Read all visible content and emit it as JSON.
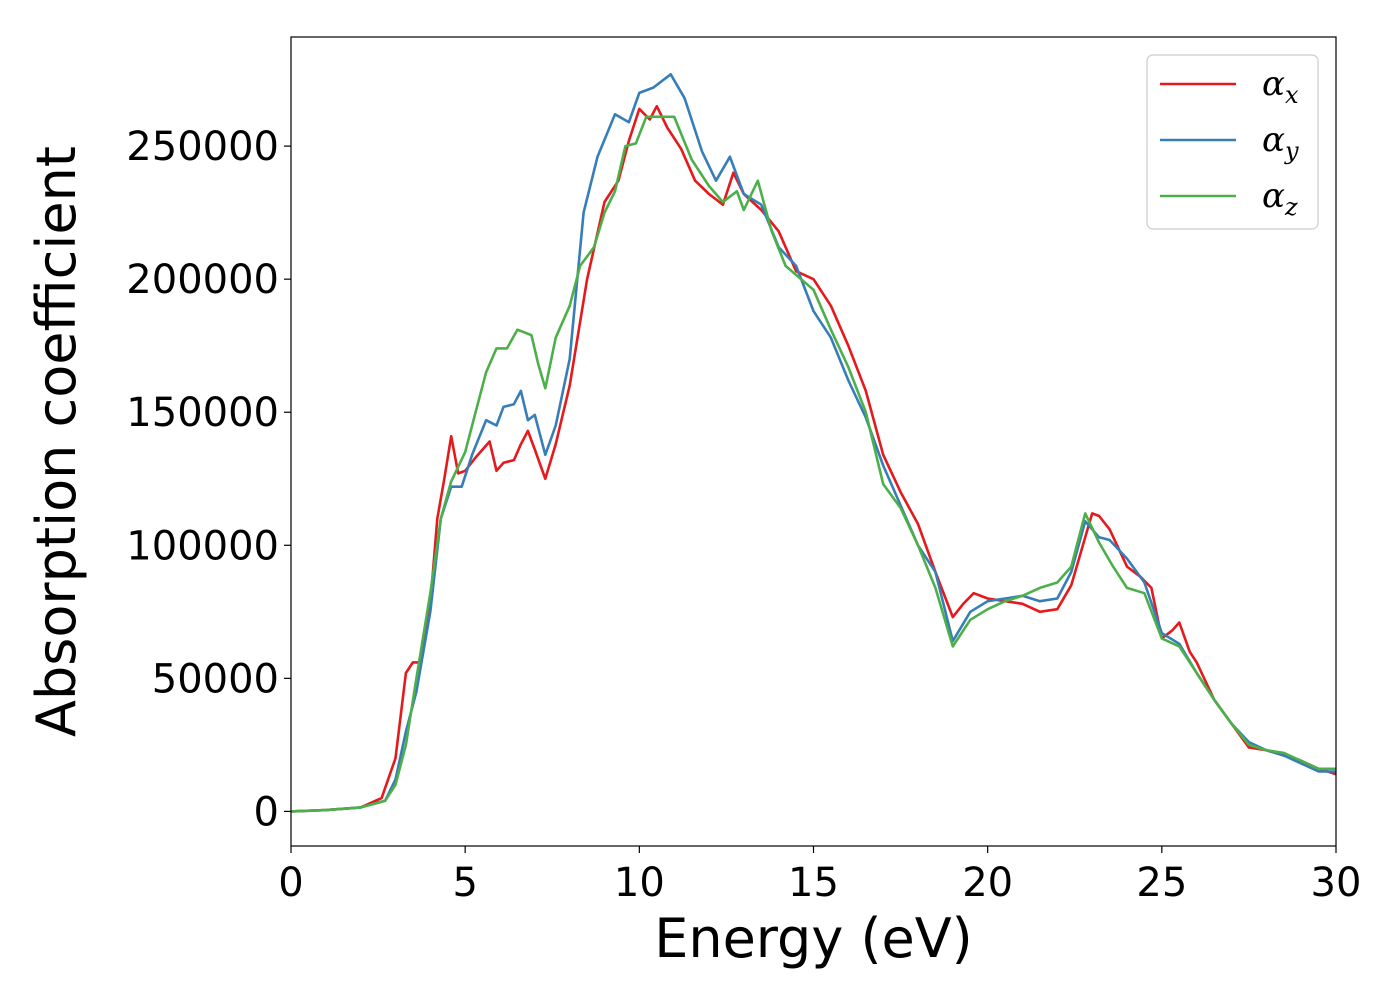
{
  "chart_data": {
    "type": "line",
    "title": "",
    "xlabel": "Energy (eV)",
    "ylabel": "Absorption coefficient",
    "xlim": [
      0,
      30
    ],
    "ylim": [
      -13000,
      291000
    ],
    "xticks": [
      0,
      5,
      10,
      15,
      20,
      25,
      30
    ],
    "xtick_labels": [
      "0",
      "5",
      "10",
      "15",
      "20",
      "25",
      "30"
    ],
    "yticks": [
      0,
      50000,
      100000,
      150000,
      200000,
      250000
    ],
    "ytick_labels": [
      "0",
      "50000",
      "100000",
      "150000",
      "200000",
      "250000"
    ],
    "grid": false,
    "legend": "top-right",
    "series": [
      {
        "name": "α_x",
        "symbol": "α",
        "subscript": "x",
        "color": "#e41a1c",
        "points": [
          [
            0,
            0
          ],
          [
            1,
            500
          ],
          [
            2,
            1500
          ],
          [
            2.6,
            5000
          ],
          [
            3,
            20000
          ],
          [
            3.3,
            52000
          ],
          [
            3.5,
            56000
          ],
          [
            3.7,
            56000
          ],
          [
            4,
            78000
          ],
          [
            4.2,
            110000
          ],
          [
            4.4,
            125000
          ],
          [
            4.6,
            141000
          ],
          [
            4.8,
            127000
          ],
          [
            5,
            128000
          ],
          [
            5.3,
            133000
          ],
          [
            5.7,
            139000
          ],
          [
            5.9,
            128000
          ],
          [
            6.1,
            131000
          ],
          [
            6.4,
            132000
          ],
          [
            6.6,
            138000
          ],
          [
            6.8,
            143000
          ],
          [
            7,
            136000
          ],
          [
            7.3,
            125000
          ],
          [
            7.6,
            138000
          ],
          [
            8,
            160000
          ],
          [
            8.5,
            200000
          ],
          [
            9,
            229000
          ],
          [
            9.4,
            237000
          ],
          [
            9.7,
            252000
          ],
          [
            10,
            264000
          ],
          [
            10.3,
            260000
          ],
          [
            10.5,
            265000
          ],
          [
            10.8,
            257000
          ],
          [
            11.2,
            249000
          ],
          [
            11.6,
            237000
          ],
          [
            12,
            232000
          ],
          [
            12.4,
            228000
          ],
          [
            12.7,
            240000
          ],
          [
            13,
            232000
          ],
          [
            13.5,
            226000
          ],
          [
            14,
            218000
          ],
          [
            14.5,
            203000
          ],
          [
            15,
            200000
          ],
          [
            15.5,
            190000
          ],
          [
            16,
            175000
          ],
          [
            16.5,
            158000
          ],
          [
            17,
            134000
          ],
          [
            17.5,
            120000
          ],
          [
            18,
            108000
          ],
          [
            18.5,
            90000
          ],
          [
            19,
            73000
          ],
          [
            19.3,
            78000
          ],
          [
            19.6,
            82000
          ],
          [
            20,
            80000
          ],
          [
            20.5,
            79000
          ],
          [
            21,
            78000
          ],
          [
            21.5,
            75000
          ],
          [
            22,
            76000
          ],
          [
            22.4,
            85000
          ],
          [
            22.8,
            103000
          ],
          [
            23,
            112000
          ],
          [
            23.2,
            111000
          ],
          [
            23.5,
            106000
          ],
          [
            24,
            92000
          ],
          [
            24.4,
            88000
          ],
          [
            24.7,
            84000
          ],
          [
            25,
            65000
          ],
          [
            25.3,
            68000
          ],
          [
            25.5,
            71000
          ],
          [
            25.8,
            60000
          ],
          [
            26,
            56000
          ],
          [
            26.5,
            42000
          ],
          [
            27,
            33000
          ],
          [
            27.5,
            24000
          ],
          [
            28,
            23000
          ],
          [
            28.5,
            21000
          ],
          [
            29,
            19000
          ],
          [
            29.5,
            16000
          ],
          [
            30,
            14000
          ]
        ]
      },
      {
        "name": "α_y",
        "symbol": "α",
        "subscript": "y",
        "color": "#377eb8",
        "points": [
          [
            0,
            0
          ],
          [
            1,
            500
          ],
          [
            2,
            1500
          ],
          [
            2.7,
            4000
          ],
          [
            3,
            12000
          ],
          [
            3.3,
            30000
          ],
          [
            3.6,
            45000
          ],
          [
            4,
            75000
          ],
          [
            4.3,
            110000
          ],
          [
            4.6,
            122000
          ],
          [
            4.9,
            122000
          ],
          [
            5.2,
            134000
          ],
          [
            5.6,
            147000
          ],
          [
            5.9,
            145000
          ],
          [
            6.1,
            152000
          ],
          [
            6.4,
            153000
          ],
          [
            6.6,
            158000
          ],
          [
            6.8,
            147000
          ],
          [
            7,
            149000
          ],
          [
            7.3,
            134000
          ],
          [
            7.6,
            145000
          ],
          [
            8,
            170000
          ],
          [
            8.4,
            225000
          ],
          [
            8.8,
            246000
          ],
          [
            9.3,
            262000
          ],
          [
            9.7,
            259000
          ],
          [
            10,
            270000
          ],
          [
            10.4,
            272000
          ],
          [
            10.9,
            277000
          ],
          [
            11.3,
            268000
          ],
          [
            11.8,
            248000
          ],
          [
            12.2,
            237000
          ],
          [
            12.6,
            246000
          ],
          [
            13,
            232000
          ],
          [
            13.5,
            228000
          ],
          [
            14,
            212000
          ],
          [
            14.5,
            205000
          ],
          [
            15,
            188000
          ],
          [
            15.5,
            178000
          ],
          [
            16,
            162000
          ],
          [
            16.5,
            148000
          ],
          [
            17,
            130000
          ],
          [
            17.5,
            115000
          ],
          [
            18,
            100000
          ],
          [
            18.5,
            90000
          ],
          [
            19,
            64000
          ],
          [
            19.5,
            75000
          ],
          [
            20,
            79000
          ],
          [
            20.5,
            80000
          ],
          [
            21,
            81000
          ],
          [
            21.5,
            79000
          ],
          [
            22,
            80000
          ],
          [
            22.4,
            90000
          ],
          [
            22.8,
            109000
          ],
          [
            23.2,
            103000
          ],
          [
            23.5,
            102000
          ],
          [
            24,
            95000
          ],
          [
            24.5,
            86000
          ],
          [
            25,
            67000
          ],
          [
            25.5,
            63000
          ],
          [
            26,
            52000
          ],
          [
            26.5,
            42000
          ],
          [
            27,
            33000
          ],
          [
            27.5,
            26000
          ],
          [
            28,
            23000
          ],
          [
            28.5,
            21000
          ],
          [
            29,
            18000
          ],
          [
            29.5,
            15000
          ],
          [
            30,
            15000
          ]
        ]
      },
      {
        "name": "α_z",
        "symbol": "α",
        "subscript": "z",
        "color": "#4daf4a",
        "points": [
          [
            0,
            0
          ],
          [
            1,
            500
          ],
          [
            2,
            1500
          ],
          [
            2.7,
            4000
          ],
          [
            3,
            10000
          ],
          [
            3.3,
            25000
          ],
          [
            3.6,
            50000
          ],
          [
            4,
            82000
          ],
          [
            4.3,
            110000
          ],
          [
            4.6,
            124000
          ],
          [
            5,
            135000
          ],
          [
            5.3,
            150000
          ],
          [
            5.6,
            165000
          ],
          [
            5.9,
            174000
          ],
          [
            6.2,
            174000
          ],
          [
            6.5,
            181000
          ],
          [
            6.9,
            179000
          ],
          [
            7.1,
            168000
          ],
          [
            7.3,
            159000
          ],
          [
            7.6,
            178000
          ],
          [
            8,
            190000
          ],
          [
            8.3,
            205000
          ],
          [
            8.7,
            212000
          ],
          [
            9,
            225000
          ],
          [
            9.3,
            233000
          ],
          [
            9.6,
            250000
          ],
          [
            9.9,
            251000
          ],
          [
            10.2,
            261000
          ],
          [
            10.6,
            261000
          ],
          [
            11,
            261000
          ],
          [
            11.5,
            245000
          ],
          [
            12,
            235000
          ],
          [
            12.4,
            229000
          ],
          [
            12.8,
            233000
          ],
          [
            13,
            226000
          ],
          [
            13.4,
            237000
          ],
          [
            13.8,
            218000
          ],
          [
            14.2,
            205000
          ],
          [
            15,
            196000
          ],
          [
            15.5,
            181000
          ],
          [
            16,
            167000
          ],
          [
            16.5,
            150000
          ],
          [
            17,
            123000
          ],
          [
            17.5,
            114000
          ],
          [
            18,
            100000
          ],
          [
            18.5,
            84000
          ],
          [
            19,
            62000
          ],
          [
            19.5,
            72000
          ],
          [
            20,
            76000
          ],
          [
            20.5,
            79000
          ],
          [
            21,
            81000
          ],
          [
            21.5,
            84000
          ],
          [
            22,
            86000
          ],
          [
            22.4,
            92000
          ],
          [
            22.8,
            112000
          ],
          [
            23.2,
            101000
          ],
          [
            23.6,
            92000
          ],
          [
            24,
            84000
          ],
          [
            24.5,
            82000
          ],
          [
            25,
            65000
          ],
          [
            25.5,
            62000
          ],
          [
            26,
            52000
          ],
          [
            26.5,
            42000
          ],
          [
            27,
            33000
          ],
          [
            27.5,
            25000
          ],
          [
            28,
            23000
          ],
          [
            28.5,
            22000
          ],
          [
            29,
            19000
          ],
          [
            29.5,
            16000
          ],
          [
            30,
            16000
          ]
        ]
      }
    ]
  }
}
